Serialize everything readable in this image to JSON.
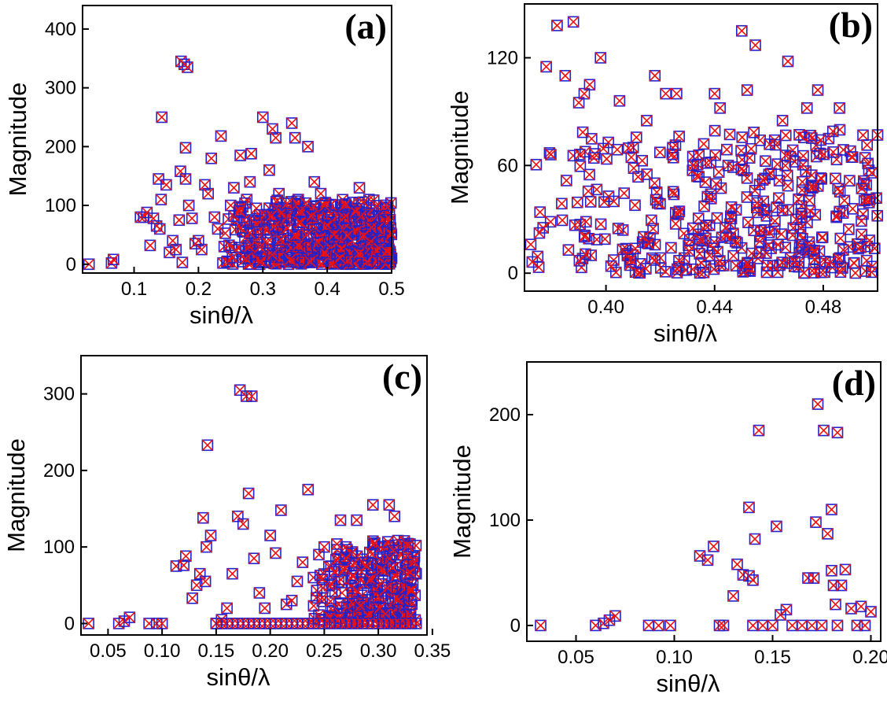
{
  "colors": {
    "square_marker": "#2222cc",
    "cross_marker": "#ee1111",
    "axes": "#000000"
  },
  "chart_data": [
    {
      "type": "scatter",
      "panel_label": "(a)",
      "xlabel": "sinθ/λ",
      "ylabel": "Magnitude",
      "xlim": [
        0.02,
        0.5
      ],
      "ylim": [
        -15,
        440
      ],
      "xticks": [
        0.1,
        0.2,
        0.3,
        0.4,
        0.5
      ],
      "xtick_labels": [
        "0.1",
        "0.2",
        "0.3",
        "0.4",
        "0.5"
      ],
      "yticks": [
        0,
        100,
        200,
        300,
        400
      ],
      "ytick_labels": [
        "0",
        "100",
        "200",
        "300",
        "400"
      ],
      "series": [
        {
          "marker": "open-square",
          "color": "#2222cc",
          "values": "same points as cross series"
        },
        {
          "marker": "cross",
          "color": "#ee1111",
          "points": [
            [
              0.03,
              0
            ],
            [
              0.065,
              2
            ],
            [
              0.068,
              8
            ],
            [
              0.11,
              80
            ],
            [
              0.115,
              80
            ],
            [
              0.12,
              88
            ],
            [
              0.125,
              32
            ],
            [
              0.13,
              78
            ],
            [
              0.135,
              65
            ],
            [
              0.138,
              145
            ],
            [
              0.14,
              60
            ],
            [
              0.142,
              110
            ],
            [
              0.143,
              250
            ],
            [
              0.15,
              135
            ],
            [
              0.155,
              20
            ],
            [
              0.16,
              40
            ],
            [
              0.165,
              25
            ],
            [
              0.17,
              75
            ],
            [
              0.172,
              158
            ],
            [
              0.173,
              345
            ],
            [
              0.175,
              3
            ],
            [
              0.178,
              340
            ],
            [
              0.18,
              145
            ],
            [
              0.183,
              335
            ],
            [
              0.18,
              198
            ],
            [
              0.185,
              100
            ],
            [
              0.19,
              78
            ],
            [
              0.195,
              35
            ],
            [
              0.2,
              40
            ],
            [
              0.205,
              25
            ],
            [
              0.21,
              135
            ],
            [
              0.215,
              120
            ],
            [
              0.22,
              180
            ],
            [
              0.225,
              80
            ],
            [
              0.23,
              60
            ],
            [
              0.235,
              218
            ],
            [
              0.238,
              2
            ],
            [
              0.24,
              30
            ],
            [
              0.245,
              5
            ],
            [
              0.25,
              100
            ],
            [
              0.255,
              130
            ],
            [
              0.26,
              75
            ],
            [
              0.265,
              185
            ],
            [
              0.27,
              55
            ],
            [
              0.275,
              110
            ],
            [
              0.28,
              140
            ],
            [
              0.282,
              188
            ],
            [
              0.285,
              20
            ],
            [
              0.29,
              95
            ],
            [
              0.295,
              0
            ],
            [
              0.3,
              250
            ],
            [
              0.305,
              60
            ],
            [
              0.31,
              160
            ],
            [
              0.315,
              230
            ],
            [
              0.32,
              215
            ],
            [
              0.325,
              120
            ],
            [
              0.33,
              80
            ],
            [
              0.335,
              30
            ],
            [
              0.34,
              0
            ],
            [
              0.345,
              240
            ],
            [
              0.35,
              215
            ],
            [
              0.355,
              110
            ],
            [
              0.36,
              45
            ],
            [
              0.365,
              90
            ],
            [
              0.37,
              200
            ],
            [
              0.375,
              70
            ],
            [
              0.38,
              140
            ],
            [
              0.385,
              60
            ],
            [
              0.39,
              120
            ],
            [
              0.395,
              25
            ],
            [
              0.4,
              80
            ],
            [
              0.405,
              100
            ],
            [
              0.41,
              35
            ],
            [
              0.415,
              60
            ],
            [
              0.42,
              10
            ],
            [
              0.425,
              70
            ],
            [
              0.43,
              45
            ],
            [
              0.435,
              20
            ],
            [
              0.44,
              95
            ],
            [
              0.445,
              50
            ],
            [
              0.45,
              130
            ],
            [
              0.455,
              15
            ],
            [
              0.46,
              80
            ],
            [
              0.465,
              110
            ],
            [
              0.47,
              40
            ],
            [
              0.475,
              60
            ],
            [
              0.48,
              20
            ],
            [
              0.485,
              90
            ],
            [
              0.49,
              30
            ],
            [
              0.495,
              55
            ],
            [
              0.5,
              10
            ]
          ],
          "dense_region": {
            "x_range": [
              0.24,
              0.5
            ],
            "y_range": [
              0,
              110
            ]
          }
        }
      ]
    },
    {
      "type": "scatter",
      "panel_label": "(b)",
      "xlabel": "sinθ/λ",
      "ylabel": "Magnitude",
      "xlim": [
        0.37,
        0.5
      ],
      "ylim": [
        -10,
        150
      ],
      "xticks": [
        0.4,
        0.44,
        0.48
      ],
      "xtick_labels": [
        "0.40",
        "0.44",
        "0.48"
      ],
      "yticks": [
        0,
        60,
        120
      ],
      "ytick_labels": [
        "0",
        "60",
        "120"
      ],
      "series": [
        {
          "marker": "open-square",
          "color": "#2222cc",
          "values": "same points as cross series"
        },
        {
          "marker": "cross",
          "color": "#ee1111",
          "points": [
            [
              0.378,
              115
            ],
            [
              0.382,
              138
            ],
            [
              0.385,
              110
            ],
            [
              0.388,
              140
            ],
            [
              0.39,
              95
            ],
            [
              0.392,
              100
            ],
            [
              0.394,
              105
            ],
            [
              0.398,
              120
            ],
            [
              0.405,
              96
            ],
            [
              0.41,
              70
            ],
            [
              0.415,
              85
            ],
            [
              0.418,
              110
            ],
            [
              0.422,
              100
            ],
            [
              0.426,
              100
            ],
            [
              0.432,
              65
            ],
            [
              0.436,
              72
            ],
            [
              0.44,
              100
            ],
            [
              0.442,
              92
            ],
            [
              0.445,
              60
            ],
            [
              0.45,
              135
            ],
            [
              0.452,
              102
            ],
            [
              0.455,
              127
            ],
            [
              0.46,
              55
            ],
            [
              0.465,
              85
            ],
            [
              0.467,
              118
            ],
            [
              0.474,
              92
            ],
            [
              0.478,
              102
            ],
            [
              0.482,
              75
            ],
            [
              0.486,
              92
            ],
            [
              0.49,
              68
            ],
            [
              0.495,
              50
            ],
            [
              0.5,
              77
            ]
          ],
          "dense_region": {
            "x_range": [
              0.37,
              0.5
            ],
            "y_range": [
              0,
              80
            ]
          }
        }
      ]
    },
    {
      "type": "scatter",
      "panel_label": "(c)",
      "xlabel": "sinθ/λ",
      "ylabel": "Magnitude",
      "xlim": [
        0.025,
        0.345
      ],
      "ylim": [
        -15,
        350
      ],
      "xticks": [
        0.05,
        0.1,
        0.15,
        0.2,
        0.25,
        0.3,
        0.35
      ],
      "xtick_labels": [
        "0.05",
        "0.10",
        "0.15",
        "0.20",
        "0.25",
        "0.30",
        "0.35"
      ],
      "yticks": [
        0,
        100,
        200,
        300
      ],
      "ytick_labels": [
        "0",
        "100",
        "200",
        "300"
      ],
      "series": [
        {
          "marker": "open-square",
          "color": "#2222cc",
          "values": "same points as cross series"
        },
        {
          "marker": "cross",
          "color": "#ee1111",
          "points": [
            [
              0.032,
              0
            ],
            [
              0.06,
              0
            ],
            [
              0.065,
              3
            ],
            [
              0.07,
              8
            ],
            [
              0.088,
              0
            ],
            [
              0.095,
              0
            ],
            [
              0.1,
              0
            ],
            [
              0.113,
              75
            ],
            [
              0.12,
              76
            ],
            [
              0.122,
              88
            ],
            [
              0.128,
              33
            ],
            [
              0.132,
              50
            ],
            [
              0.135,
              65
            ],
            [
              0.138,
              138
            ],
            [
              0.14,
              55
            ],
            [
              0.141,
              100
            ],
            [
              0.142,
              233
            ],
            [
              0.145,
              115
            ],
            [
              0.15,
              0
            ],
            [
              0.155,
              5
            ],
            [
              0.16,
              20
            ],
            [
              0.165,
              65
            ],
            [
              0.17,
              140
            ],
            [
              0.172,
              305
            ],
            [
              0.175,
              130
            ],
            [
              0.178,
              297
            ],
            [
              0.18,
              170
            ],
            [
              0.183,
              297
            ],
            [
              0.185,
              85
            ],
            [
              0.19,
              40
            ],
            [
              0.195,
              20
            ],
            [
              0.2,
              115
            ],
            [
              0.205,
              92
            ],
            [
              0.21,
              148
            ],
            [
              0.215,
              25
            ],
            [
              0.22,
              30
            ],
            [
              0.225,
              55
            ],
            [
              0.23,
              80
            ],
            [
              0.235,
              175
            ],
            [
              0.24,
              60
            ],
            [
              0.245,
              90
            ],
            [
              0.25,
              100
            ],
            [
              0.255,
              10
            ],
            [
              0.26,
              40
            ],
            [
              0.265,
              135
            ],
            [
              0.27,
              100
            ],
            [
              0.275,
              50
            ],
            [
              0.28,
              135
            ],
            [
              0.285,
              30
            ],
            [
              0.29,
              80
            ],
            [
              0.295,
              155
            ],
            [
              0.3,
              60
            ],
            [
              0.305,
              20
            ],
            [
              0.31,
              155
            ],
            [
              0.315,
              140
            ],
            [
              0.32,
              45
            ],
            [
              0.325,
              75
            ],
            [
              0.33,
              30
            ],
            [
              0.335,
              65
            ]
          ],
          "dense_region": {
            "x_range": [
              0.24,
              0.335
            ],
            "y_range": [
              0,
              110
            ]
          },
          "zero_row_x": [
            0.15,
            0.335
          ]
        }
      ]
    },
    {
      "type": "scatter",
      "panel_label": "(d)",
      "xlabel": "sinθ/λ",
      "ylabel": "Magnitude",
      "xlim": [
        0.025,
        0.205
      ],
      "ylim": [
        -15,
        250
      ],
      "xticks": [
        0.05,
        0.1,
        0.15,
        0.2
      ],
      "xtick_labels": [
        "0.05",
        "0.10",
        "0.15",
        "0.20"
      ],
      "yticks": [
        0,
        100,
        200
      ],
      "ytick_labels": [
        "0",
        "100",
        "200"
      ],
      "series": [
        {
          "marker": "open-square",
          "color": "#2222cc",
          "values": "same points as cross series"
        },
        {
          "marker": "cross",
          "color": "#ee1111",
          "points": [
            [
              0.032,
              0
            ],
            [
              0.06,
              0
            ],
            [
              0.064,
              2
            ],
            [
              0.067,
              5
            ],
            [
              0.07,
              9
            ],
            [
              0.087,
              0
            ],
            [
              0.092,
              0
            ],
            [
              0.098,
              0
            ],
            [
              0.113,
              66
            ],
            [
              0.117,
              62
            ],
            [
              0.12,
              75
            ],
            [
              0.123,
              0
            ],
            [
              0.125,
              0
            ],
            [
              0.13,
              28
            ],
            [
              0.132,
              58
            ],
            [
              0.135,
              48
            ],
            [
              0.138,
              47
            ],
            [
              0.138,
              112
            ],
            [
              0.14,
              43
            ],
            [
              0.141,
              82
            ],
            [
              0.143,
              185
            ],
            [
              0.14,
              0
            ],
            [
              0.145,
              0
            ],
            [
              0.15,
              0
            ],
            [
              0.152,
              94
            ],
            [
              0.154,
              10
            ],
            [
              0.157,
              15
            ],
            [
              0.16,
              0
            ],
            [
              0.165,
              0
            ],
            [
              0.168,
              45
            ],
            [
              0.17,
              0
            ],
            [
              0.171,
              45
            ],
            [
              0.172,
              98
            ],
            [
              0.173,
              210
            ],
            [
              0.175,
              0
            ],
            [
              0.176,
              185
            ],
            [
              0.178,
              87
            ],
            [
              0.18,
              52
            ],
            [
              0.18,
              110
            ],
            [
              0.181,
              38
            ],
            [
              0.182,
              20
            ],
            [
              0.183,
              0
            ],
            [
              0.183,
              183
            ],
            [
              0.185,
              38
            ],
            [
              0.187,
              53
            ],
            [
              0.19,
              16
            ],
            [
              0.193,
              0
            ],
            [
              0.195,
              18
            ],
            [
              0.197,
              0
            ],
            [
              0.2,
              13
            ]
          ]
        }
      ]
    }
  ]
}
